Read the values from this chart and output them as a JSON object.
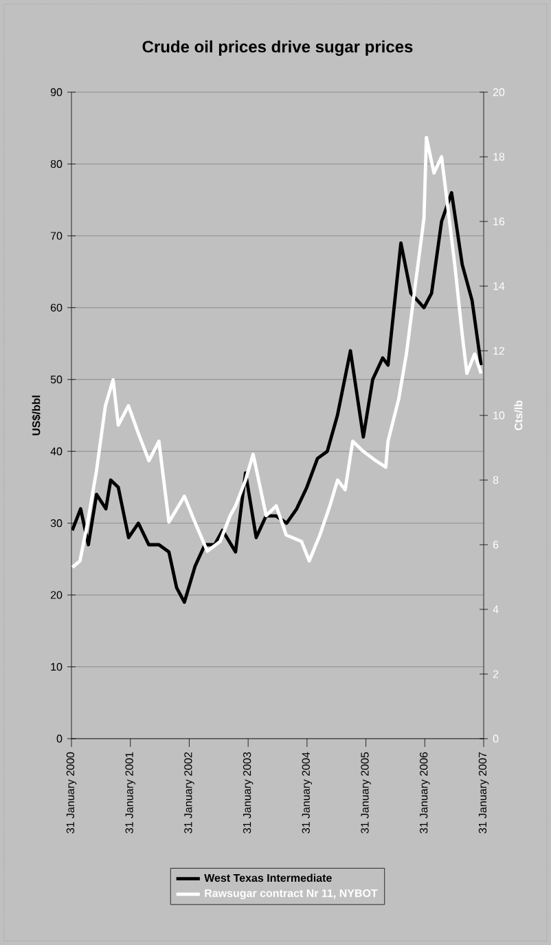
{
  "chart_data": {
    "type": "line",
    "title": "Crude oil prices drive sugar prices",
    "ylabel": "US$/bbl",
    "y2label": "Cts/lb",
    "xlim": [
      "2000-01-31",
      "2007-01-31"
    ],
    "xticks": [
      {
        "value": "2000-01-31",
        "label": "31 January 2000"
      },
      {
        "value": "2001-01-31",
        "label": "31 January 2001"
      },
      {
        "value": "2002-01-31",
        "label": "31 January 2002"
      },
      {
        "value": "2003-01-31",
        "label": "31 January 2003"
      },
      {
        "value": "2004-01-31",
        "label": "31 January 2004"
      },
      {
        "value": "2005-01-31",
        "label": "31 January 2005"
      },
      {
        "value": "2006-01-31",
        "label": "31 January 2006"
      },
      {
        "value": "2007-01-31",
        "label": "31 January 2007"
      }
    ],
    "ylim": [
      0,
      90
    ],
    "yticks": [
      0,
      10,
      20,
      30,
      40,
      50,
      60,
      70,
      80,
      90
    ],
    "y2lim": [
      0,
      20
    ],
    "y2ticks": [
      0,
      2,
      4,
      6,
      8,
      10,
      12,
      14,
      16,
      18,
      20
    ],
    "grid": "y",
    "legend": "bottom",
    "series": [
      {
        "name": "West Texas Intermediate",
        "color": "#000000",
        "x": [
          "2000-02-05",
          "2000-03-28",
          "2000-05-15",
          "2000-07-05",
          "2000-09-01",
          "2000-10-01",
          "2000-11-17",
          "2001-01-20",
          "2001-03-22",
          "2001-05-25",
          "2001-07-27",
          "2001-09-27",
          "2001-11-14",
          "2002-01-01",
          "2002-03-08",
          "2002-05-08",
          "2002-07-08",
          "2002-08-25",
          "2002-11-14",
          "2003-01-15",
          "2003-03-22",
          "2003-05-22",
          "2003-07-24",
          "2003-09-27",
          "2003-11-28",
          "2004-01-30",
          "2004-04-05",
          "2004-06-05",
          "2004-08-07",
          "2004-10-27",
          "2005-01-15",
          "2005-03-14",
          "2005-05-15",
          "2005-06-17",
          "2005-09-05",
          "2005-11-06",
          "2006-01-26",
          "2006-03-14",
          "2006-05-15",
          "2006-07-16",
          "2006-09-20",
          "2006-11-20",
          "2007-01-15"
        ],
        "values": [
          29,
          32,
          27,
          34,
          32,
          36,
          35,
          28,
          30,
          27,
          27,
          26,
          21,
          19,
          24,
          27,
          27,
          29,
          26,
          37,
          28,
          31,
          31,
          30,
          32,
          35,
          39,
          40,
          45,
          54,
          42,
          50,
          53,
          52,
          69,
          62,
          60,
          62,
          72,
          76,
          66,
          61,
          52
        ]
      },
      {
        "name": "Rawsugar contract Nr 11, NYBOT",
        "color": "#ffffff",
        "axis": "y2",
        "x": [
          "2000-02-06",
          "2000-03-24",
          "2000-05-11",
          "2000-07-05",
          "2000-08-29",
          "2000-10-16",
          "2000-11-17",
          "2001-01-19",
          "2001-03-25",
          "2001-05-26",
          "2001-07-27",
          "2001-09-27",
          "2002-01-01",
          "2002-03-07",
          "2002-05-23",
          "2002-08-10",
          "2002-10-12",
          "2002-11-14",
          "2003-01-15",
          "2003-03-03",
          "2003-05-23",
          "2003-07-24",
          "2003-09-24",
          "2003-12-28",
          "2004-02-14",
          "2004-04-20",
          "2004-06-21",
          "2004-08-08",
          "2004-09-24",
          "2004-11-10",
          "2005-01-12",
          "2005-04-02",
          "2005-06-03",
          "2005-06-17",
          "2005-08-22",
          "2005-10-09",
          "2005-11-22",
          "2006-01-26",
          "2006-02-10",
          "2006-03-29",
          "2006-05-15",
          "2006-07-01",
          "2006-08-04",
          "2006-09-20",
          "2006-10-19",
          "2006-12-06",
          "2007-01-15"
        ],
        "values": [
          5.3,
          5.5,
          6.7,
          8.3,
          10.3,
          11.1,
          9.7,
          10.3,
          9.4,
          8.6,
          9.2,
          6.7,
          7.5,
          6.7,
          5.8,
          6.1,
          6.9,
          7.2,
          8.0,
          8.8,
          6.9,
          7.2,
          6.3,
          6.1,
          5.5,
          6.3,
          7.2,
          8.0,
          7.7,
          9.2,
          8.9,
          8.6,
          8.4,
          9.2,
          10.5,
          11.9,
          13.6,
          16.1,
          18.6,
          17.5,
          18,
          16.1,
          14.7,
          12.5,
          11.3,
          11.9,
          11.3
        ]
      }
    ]
  }
}
